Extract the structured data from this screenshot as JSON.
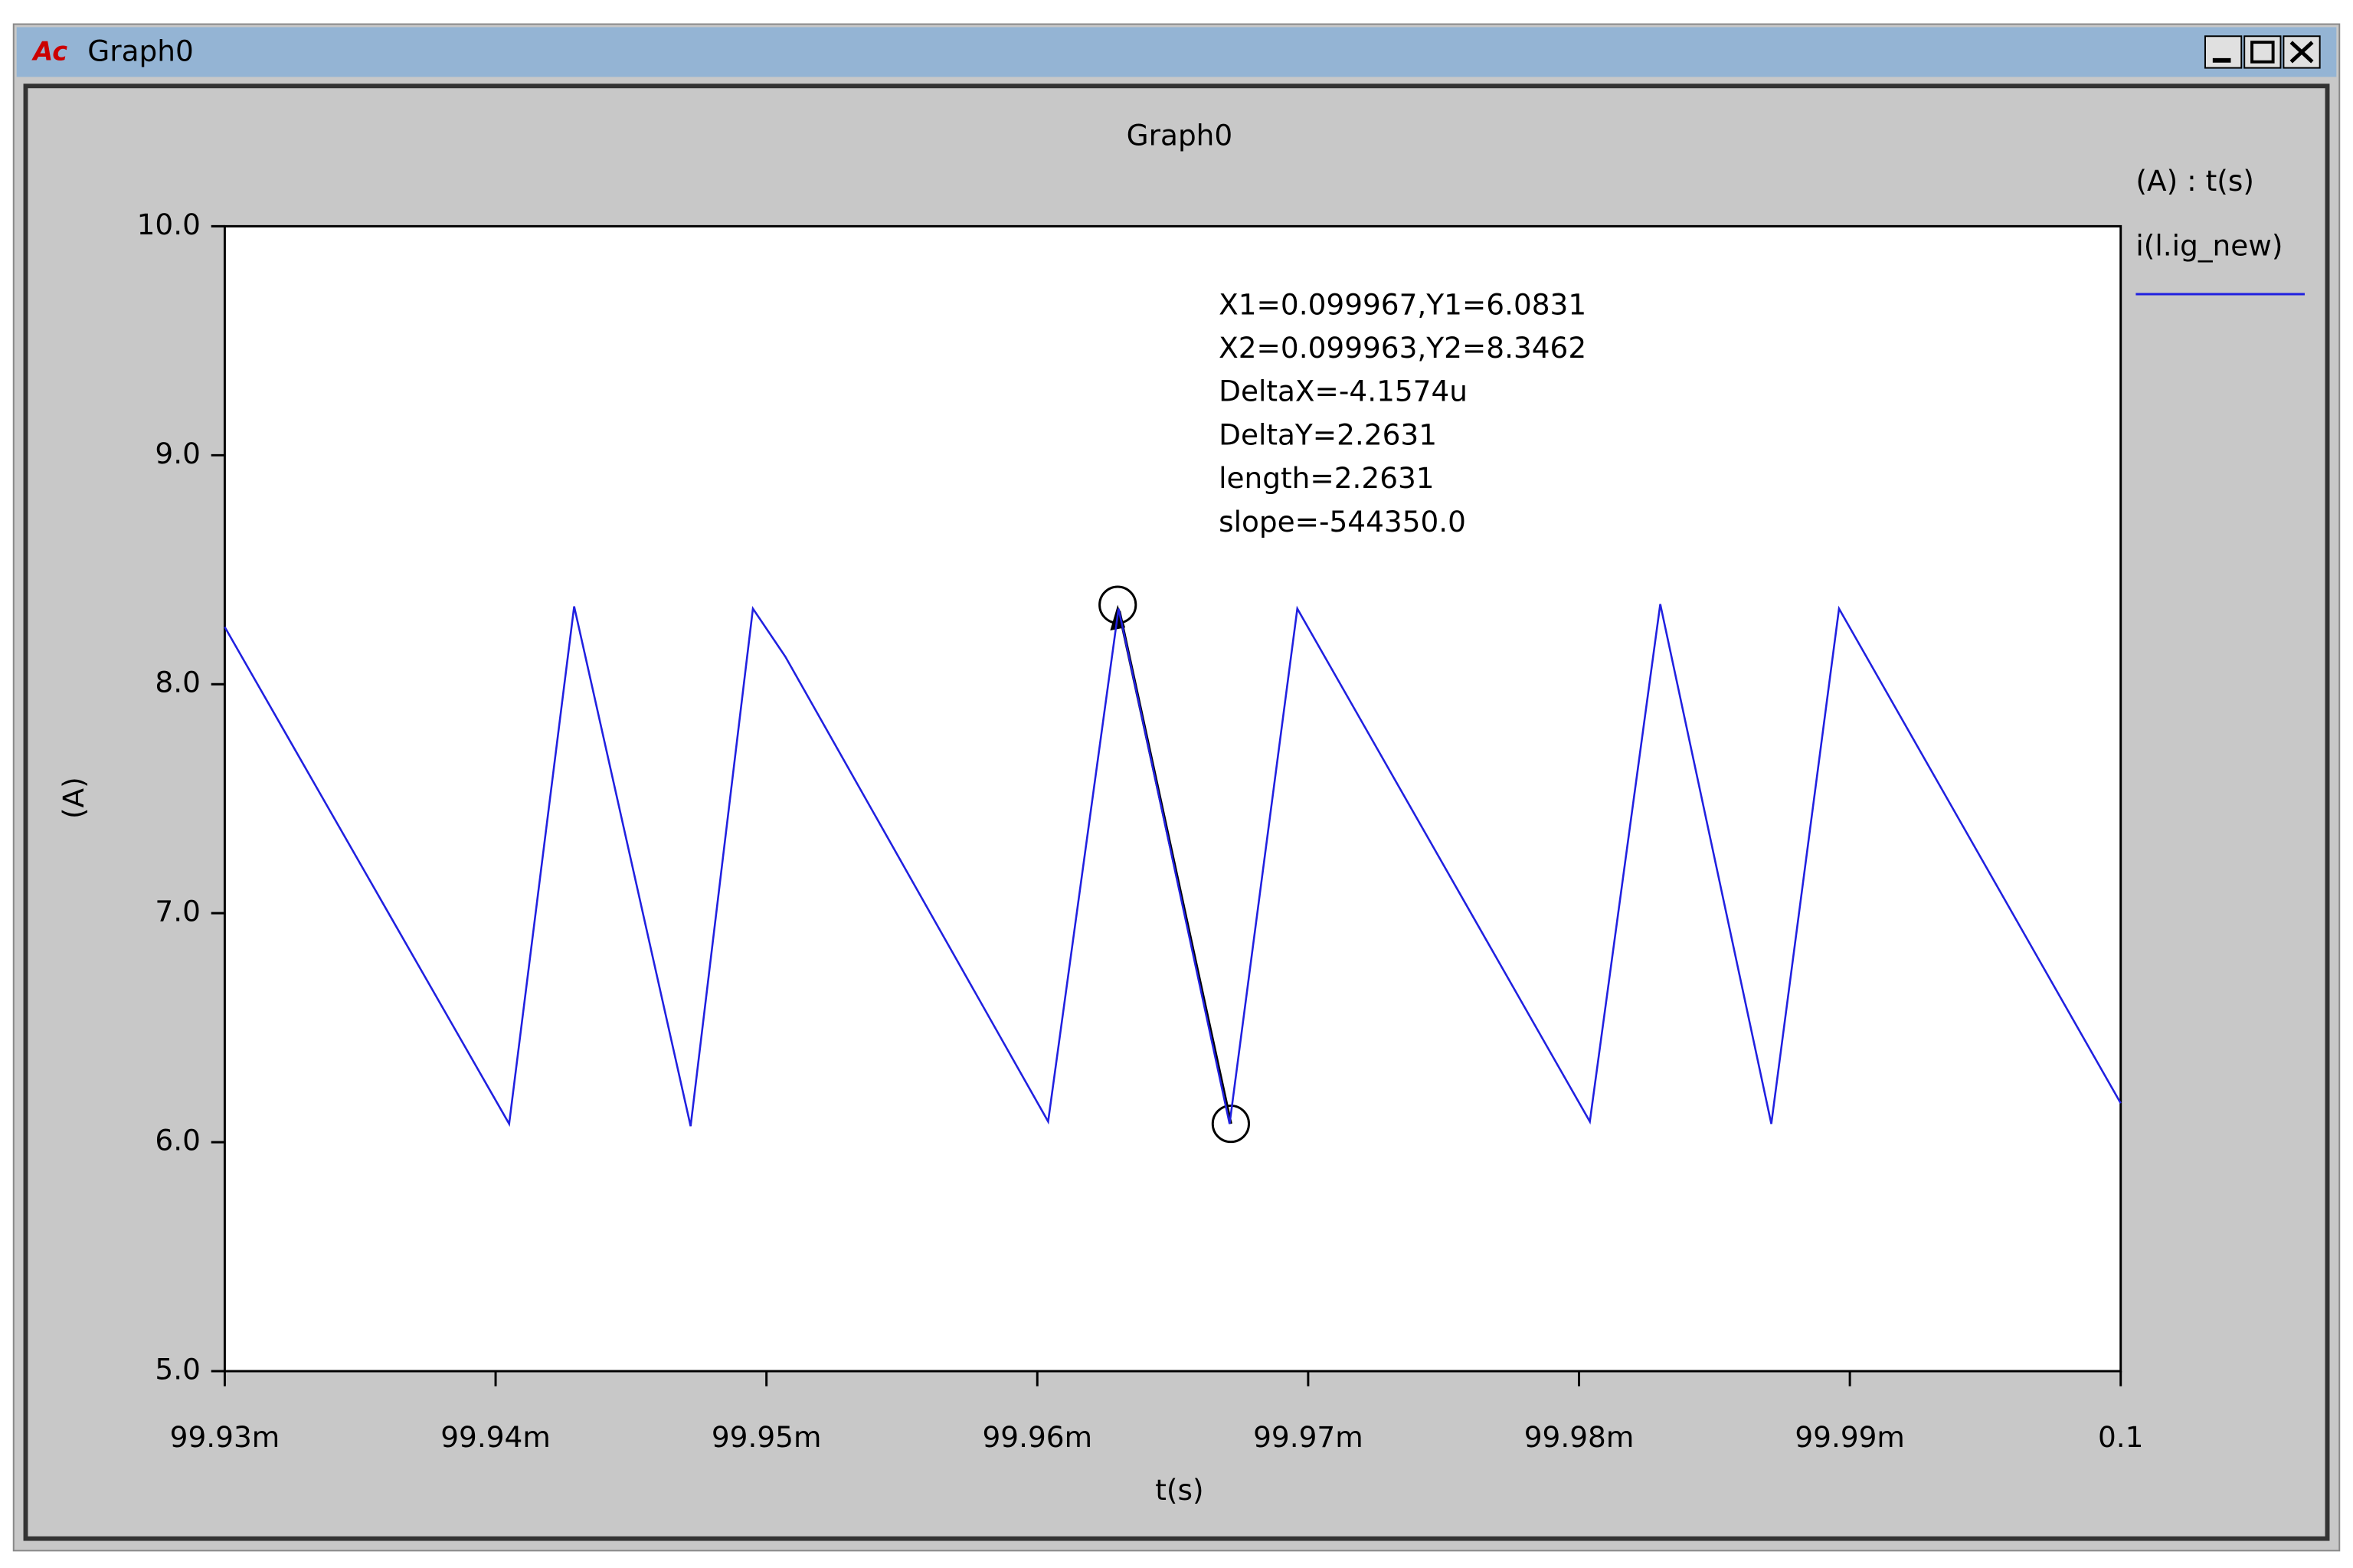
{
  "window_title": "Graph0",
  "chart_data": {
    "type": "line",
    "title": "Graph0",
    "x_label": "t(s)",
    "y_label": "(A)",
    "legend_title": "(A) : t(s)",
    "x": [
      0.09993,
      0.0999405,
      0.0999429,
      0.0999472,
      0.0999495,
      0.0999507,
      0.0999604,
      0.099963,
      0.0999671,
      0.0999696,
      0.0999804,
      0.099983,
      0.0999871,
      0.0999896,
      0.1
    ],
    "series": [
      {
        "name": "i(l.ig_new)",
        "color": "#2020e0",
        "values": [
          8.25,
          6.08,
          8.34,
          6.07,
          8.33,
          8.12,
          6.09,
          8.33,
          6.08,
          8.33,
          6.09,
          8.35,
          6.08,
          8.33,
          6.17
        ]
      }
    ],
    "xlim": [
      0.09993,
      0.1
    ],
    "xticks": [
      {
        "value": 0.09993,
        "label": "99.93m"
      },
      {
        "value": 0.09994,
        "label": "99.94m"
      },
      {
        "value": 0.09995,
        "label": "99.95m"
      },
      {
        "value": 0.09996,
        "label": "99.96m"
      },
      {
        "value": 0.09997,
        "label": "99.97m"
      },
      {
        "value": 0.09998,
        "label": "99.98m"
      },
      {
        "value": 0.09999,
        "label": "99.99m"
      },
      0.1
    ],
    "ylim": [
      5,
      10
    ],
    "yticks": [
      {
        "value": 5,
        "label": "5.0"
      },
      {
        "value": 6,
        "label": "6.0"
      },
      {
        "value": 7,
        "label": "7.0"
      },
      {
        "value": 8,
        "label": "8.0"
      },
      {
        "value": 9,
        "label": "9.0"
      },
      {
        "value": 10,
        "label": "10.0"
      }
    ],
    "annotations": [
      "X1=0.099967,Y1=6.0831",
      "X2=0.099963,Y2=8.3462",
      "DeltaX=-4.1574u",
      "DeltaY=2.2631",
      "length=2.2631",
      "slope=-544350.0"
    ]
  }
}
